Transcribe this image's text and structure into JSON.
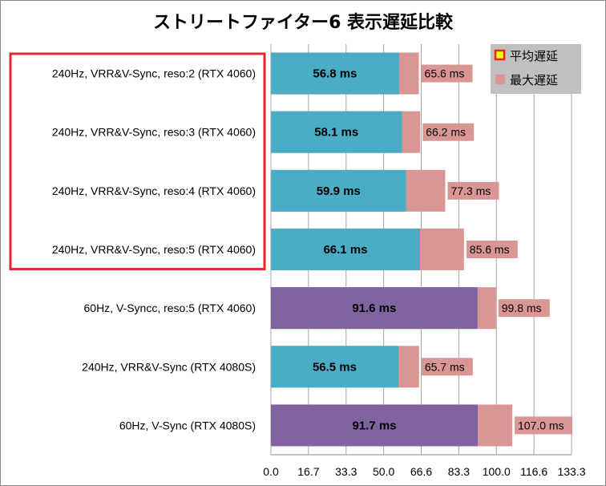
{
  "chart_data": {
    "type": "bar",
    "orientation": "horizontal",
    "stacked": "overlay",
    "title": "ストリートファイター6 表示遅延比較",
    "categories": [
      "240Hz, VRR&V-Sync, reso:2 (RTX 4060)",
      "240Hz, VRR&V-Sync, reso:3 (RTX 4060)",
      "240Hz, VRR&V-Sync, reso:4 (RTX 4060)",
      "240Hz, VRR&V-Sync, reso:5 (RTX 4060)",
      "60Hz, V-Syncc, reso:5 (RTX 4060)",
      "240Hz, VRR&V-Sync (RTX 4080S)",
      "60Hz, V-Sync (RTX 4080S)"
    ],
    "series": [
      {
        "name": "平均遅延",
        "values": [
          56.8,
          58.1,
          59.9,
          66.1,
          91.6,
          56.5,
          91.7
        ],
        "labels": [
          "56.8 ms",
          "58.1 ms",
          "59.9 ms",
          "66.1 ms",
          "91.6 ms",
          "56.5 ms",
          "91.7 ms"
        ],
        "colors": [
          "#4bacc6",
          "#4bacc6",
          "#4bacc6",
          "#4bacc6",
          "#8064a2",
          "#4bacc6",
          "#8064a2"
        ]
      },
      {
        "name": "最大遅延",
        "values": [
          65.6,
          66.2,
          77.3,
          85.6,
          99.8,
          65.7,
          107.0
        ],
        "labels": [
          "65.6 ms",
          "66.2 ms",
          "77.3 ms",
          "85.6 ms",
          "99.8 ms",
          "65.7 ms",
          "107.0 ms"
        ],
        "color": "#d99694"
      }
    ],
    "xlim": [
      0,
      133.3
    ],
    "xticks": [
      "0.0",
      "16.7",
      "33.3",
      "50.0",
      "66.6",
      "83.3",
      "100.0",
      "116.6",
      "133.3"
    ],
    "grid": "vertical",
    "legend_position": "top-right",
    "highlight_box": {
      "rows": [
        0,
        1,
        2,
        3
      ],
      "color": "#e8252f"
    },
    "legend_bg": "#c0c0c0",
    "legend_marker_border": "#e8252f",
    "legend_marker_fill": "#ffff00"
  }
}
